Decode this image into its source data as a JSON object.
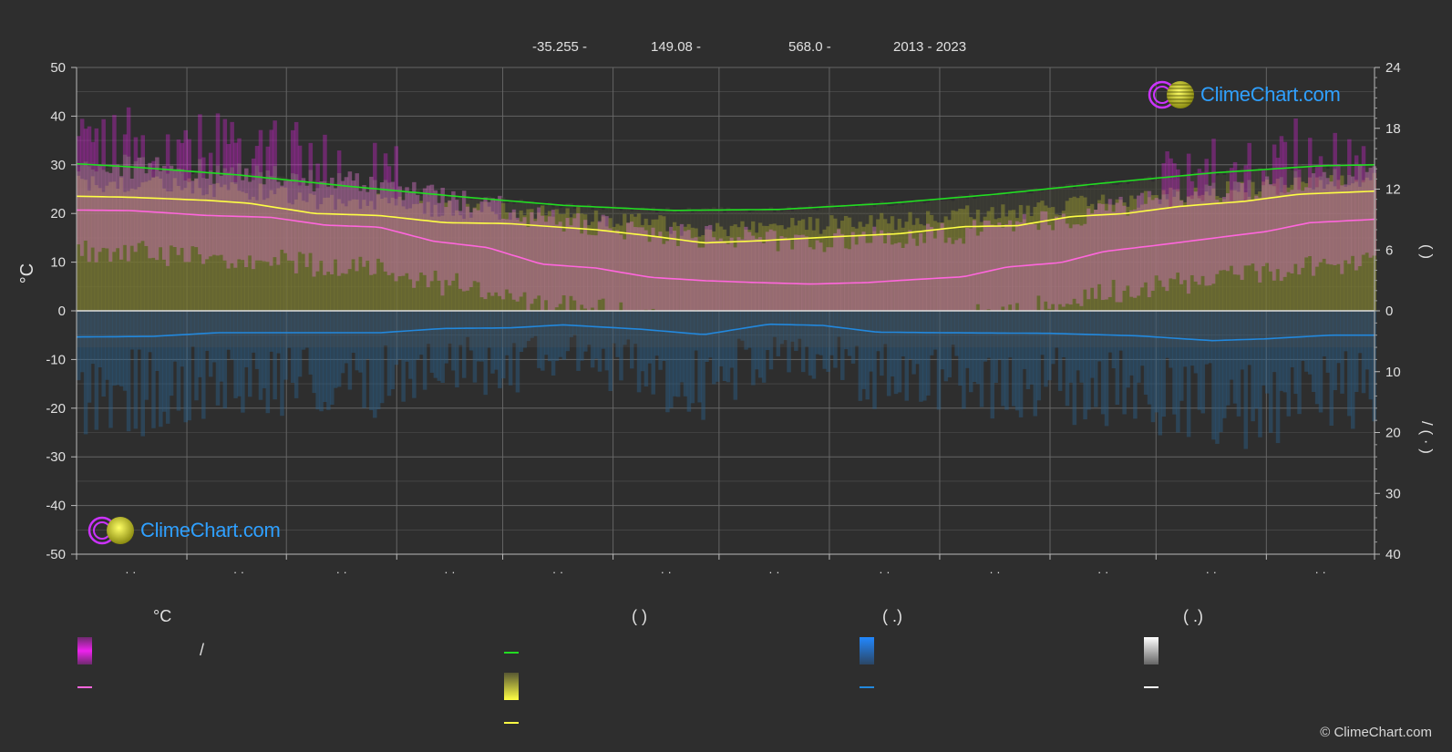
{
  "header": {
    "latitude": "-35.255 -",
    "longitude": "149.08 -",
    "elevation": "568.0 -",
    "years": "2013 - 2023"
  },
  "logo_text": "ClimeChart.com",
  "copyright": "© ClimeChart.com",
  "legend": {
    "col1_title": "°C",
    "col1_row1_text": "/",
    "col2_title": "(          )",
    "col3_title": "(   .)",
    "col4_title": "(   .)"
  },
  "right_axis_label_top": "(     )",
  "right_axis_label_bottom": "/     (  ·  )",
  "colors": {
    "background": "#2e2e2e",
    "grid": "#6a6a6a",
    "daylight": "#22dd22",
    "sunshine": "#ffff44",
    "avg_max": "#ffff44",
    "avg_min": "#ff66dd",
    "precipitation": "#2288dd",
    "temp_range": "#ee22ee",
    "snow": "#ffffff"
  },
  "chart_data": {
    "type": "line",
    "ylabel": "°C",
    "ylim": [
      -50,
      50
    ],
    "y_ticks": [
      "50",
      "40",
      "30",
      "20",
      "10",
      "0",
      "-10",
      "-20",
      "-30",
      "-40",
      "-50"
    ],
    "y2_upper_ticks": [
      "24",
      "18",
      "12",
      "6",
      "0"
    ],
    "y2_lower_ticks": [
      "0",
      "10",
      "20",
      "30",
      "40"
    ],
    "y2_upper_range": [
      0,
      24
    ],
    "y2_lower_range": [
      0,
      40
    ],
    "x_months": 12,
    "x_tick_labels": [
      "· ·",
      "· ·",
      "· ·",
      "· ·",
      "· ·",
      "· ·",
      "· ·",
      "· ·",
      "· ·",
      "· ·",
      "· ·",
      "· ·"
    ],
    "grid": true,
    "series": [
      {
        "key": "daylight",
        "axis": "right_upper",
        "points": [
          [
            0,
            14.5
          ],
          [
            0.5,
            14.2
          ],
          [
            1.5,
            13.4
          ],
          [
            2.5,
            12.3
          ],
          [
            3.5,
            11.3
          ],
          [
            4.5,
            10.4
          ],
          [
            5.5,
            9.9
          ],
          [
            6.5,
            10.0
          ],
          [
            7.5,
            10.6
          ],
          [
            8.5,
            11.5
          ],
          [
            9.5,
            12.6
          ],
          [
            10.5,
            13.6
          ],
          [
            11.5,
            14.3
          ],
          [
            12,
            14.4
          ]
        ]
      },
      {
        "key": "sunshine",
        "axis": "right_upper",
        "points": [
          [
            0,
            11.3
          ],
          [
            0.5,
            11.2
          ],
          [
            1.2,
            10.9
          ],
          [
            1.6,
            10.6
          ],
          [
            2.2,
            9.6
          ],
          [
            2.8,
            9.4
          ],
          [
            3.4,
            8.7
          ],
          [
            4,
            8.6
          ],
          [
            4.8,
            8.0
          ],
          [
            5.3,
            7.4
          ],
          [
            5.8,
            6.7
          ],
          [
            6.3,
            6.9
          ],
          [
            7,
            7.3
          ],
          [
            7.6,
            7.6
          ],
          [
            8.2,
            8.3
          ],
          [
            8.7,
            8.4
          ],
          [
            9.2,
            9.3
          ],
          [
            9.7,
            9.6
          ],
          [
            10.2,
            10.3
          ],
          [
            10.8,
            10.8
          ],
          [
            11.3,
            11.5
          ],
          [
            12,
            11.8
          ]
        ]
      },
      {
        "key": "avg_min",
        "axis": "left",
        "points": [
          [
            0,
            20.7
          ],
          [
            0.5,
            20.6
          ],
          [
            1.2,
            19.6
          ],
          [
            1.8,
            19.2
          ],
          [
            2.3,
            17.6
          ],
          [
            2.8,
            17.2
          ],
          [
            3.3,
            14.3
          ],
          [
            3.8,
            13.0
          ],
          [
            4.3,
            9.6
          ],
          [
            4.8,
            8.8
          ],
          [
            5.3,
            6.9
          ],
          [
            5.8,
            6.2
          ],
          [
            6.3,
            5.8
          ],
          [
            6.8,
            5.5
          ],
          [
            7.3,
            5.8
          ],
          [
            7.8,
            6.5
          ],
          [
            8.2,
            7.0
          ],
          [
            8.6,
            9.0
          ],
          [
            9.1,
            9.9
          ],
          [
            9.5,
            12.2
          ],
          [
            10.0,
            13.5
          ],
          [
            10.5,
            14.9
          ],
          [
            11.0,
            16.3
          ],
          [
            11.4,
            18.1
          ],
          [
            12,
            18.8
          ]
        ]
      },
      {
        "key": "precipitation",
        "axis": "right_lower",
        "points": [
          [
            0,
            4.3
          ],
          [
            0.7,
            4.2
          ],
          [
            1.3,
            3.6
          ],
          [
            2,
            3.6
          ],
          [
            2.8,
            3.6
          ],
          [
            3.4,
            2.9
          ],
          [
            4,
            2.8
          ],
          [
            4.5,
            2.3
          ],
          [
            5.2,
            3.0
          ],
          [
            5.8,
            3.9
          ],
          [
            6.4,
            2.2
          ],
          [
            6.9,
            2.4
          ],
          [
            7.4,
            3.5
          ],
          [
            8,
            3.6
          ],
          [
            9,
            3.7
          ],
          [
            9.8,
            4.1
          ],
          [
            10.5,
            4.9
          ],
          [
            11,
            4.6
          ],
          [
            11.6,
            4.0
          ],
          [
            12,
            4.0
          ]
        ]
      }
    ]
  }
}
